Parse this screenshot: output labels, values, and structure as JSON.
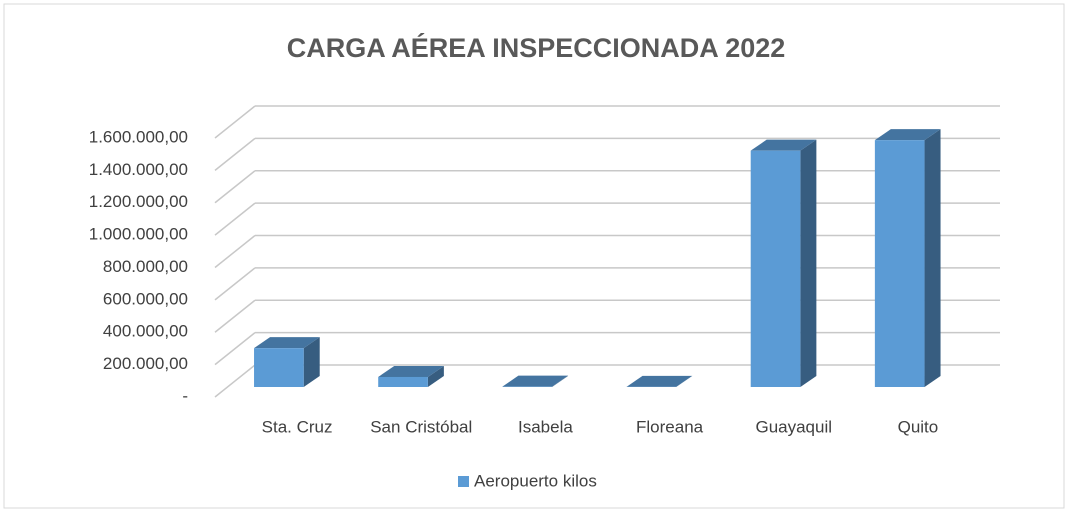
{
  "chart_data": {
    "type": "bar3d",
    "title": "CARGA AÉREA  INSPECCIONADA 2022",
    "categories": [
      "Sta. Cruz",
      "San Cristóbal",
      "Isabela",
      "Floreana",
      "Guayaquil",
      "Quito"
    ],
    "series": [
      {
        "name": "Aeropuerto kilos",
        "color": "#5b9bd5",
        "values": [
          240000,
          62000,
          2000,
          1000,
          1460000,
          1525000
        ]
      }
    ],
    "ylim": [
      0,
      1600000
    ],
    "yticks": [
      {
        "value": 0,
        "label": "-"
      },
      {
        "value": 200000,
        "label": "200.000,00"
      },
      {
        "value": 400000,
        "label": "400.000,00"
      },
      {
        "value": 600000,
        "label": "600.000,00"
      },
      {
        "value": 800000,
        "label": "800.000,00"
      },
      {
        "value": 1000000,
        "label": "1.000.000,00"
      },
      {
        "value": 1200000,
        "label": "1.200.000,00"
      },
      {
        "value": 1400000,
        "label": "1.400.000,00"
      },
      {
        "value": 1600000,
        "label": "1.600.000,00"
      }
    ],
    "grid": true,
    "legend": "bottom"
  }
}
